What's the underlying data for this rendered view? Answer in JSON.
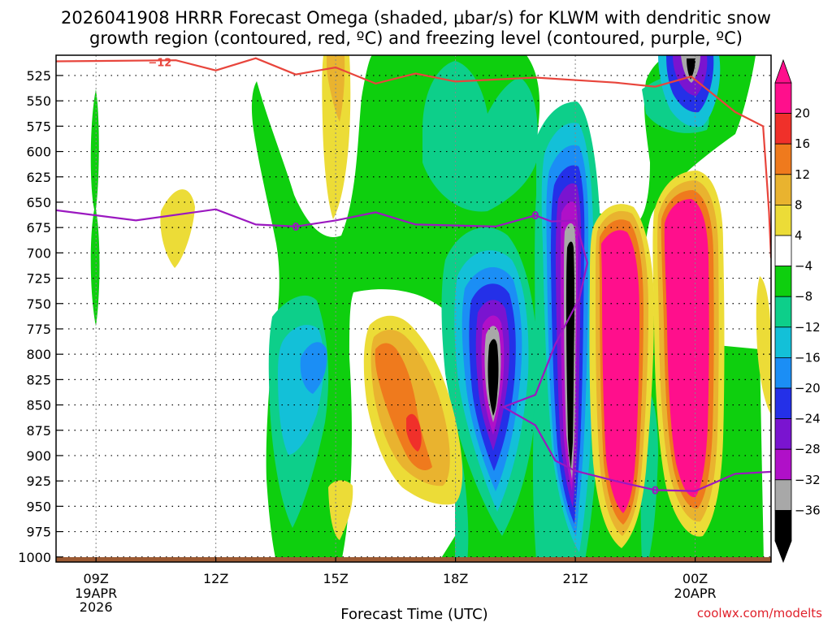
{
  "chart_data": {
    "type": "time-height contour",
    "title_line1": "2026041908 HRRR Forecast Omega (shaded, μbar/s) for KLWM with dendritic snow",
    "title_line2": "growth region (contoured, red, ºC) and freezing level (contoured, purple, ºC)",
    "xlabel": "Forecast Time (UTC)",
    "credit": "coolwx.com/modelts",
    "x_ticks": [
      {
        "hour": 9,
        "label": "09Z",
        "sub": [
          "19APR",
          "2026"
        ]
      },
      {
        "hour": 12,
        "label": "12Z",
        "sub": []
      },
      {
        "hour": 15,
        "label": "15Z",
        "sub": []
      },
      {
        "hour": 18,
        "label": "18Z",
        "sub": []
      },
      {
        "hour": 21,
        "label": "21Z",
        "sub": []
      },
      {
        "hour": 24,
        "label": "00Z",
        "sub": [
          "20APR"
        ]
      }
    ],
    "xlim": [
      8.0,
      25.9
    ],
    "y_ticks": [
      "525",
      "550",
      "575",
      "600",
      "625",
      "650",
      "675",
      "700",
      "725",
      "750",
      "775",
      "800",
      "825",
      "850",
      "875",
      "900",
      "925",
      "950",
      "975",
      "1000"
    ],
    "ylim": [
      505,
      1005
    ],
    "colorbar": {
      "levels": [
        "20",
        "16",
        "12",
        "8",
        "4",
        "−4",
        "−8",
        "−12",
        "−16",
        "−20",
        "−24",
        "−28",
        "−32",
        "−36"
      ],
      "colors": [
        "#ff0f8c",
        "#f0302a",
        "#ef7a1d",
        "#e9b32f",
        "#ecdc37",
        "#ffffff",
        "#0ecf0e",
        "#0dcf8a",
        "#13c0d8",
        "#1b8ef5",
        "#2430e8",
        "#7a14d0",
        "#b010c8",
        "#a8a8a8",
        "#000000"
      ]
    },
    "contours": {
      "dgz_minus12_label": "−12",
      "dgz_minus12_points": [
        [
          8.0,
          511
        ],
        [
          11.0,
          510
        ],
        [
          12.0,
          520
        ],
        [
          13.0,
          508
        ],
        [
          14.0,
          524
        ],
        [
          15.0,
          517
        ],
        [
          16.0,
          533
        ],
        [
          17.0,
          523
        ],
        [
          18.0,
          531
        ],
        [
          20.0,
          527
        ],
        [
          22.0,
          532
        ],
        [
          23.0,
          536
        ],
        [
          23.9,
          526
        ],
        [
          25.0,
          561
        ],
        [
          25.7,
          575
        ],
        [
          25.85,
          660
        ],
        [
          25.9,
          705
        ]
      ],
      "freezing_level_label": "0",
      "freezing_level_points": [
        [
          8.0,
          658
        ],
        [
          10.0,
          668
        ],
        [
          12.0,
          657
        ],
        [
          13.0,
          672
        ],
        [
          14.0,
          674
        ],
        [
          15.0,
          668
        ],
        [
          16.0,
          660
        ],
        [
          17.0,
          672
        ],
        [
          19.0,
          674
        ],
        [
          20.0,
          663
        ],
        [
          20.4,
          669
        ],
        [
          21.0,
          668
        ],
        [
          21.3,
          710
        ],
        [
          21.1,
          745
        ],
        [
          20.5,
          790
        ],
        [
          20.0,
          840
        ],
        [
          19.2,
          852
        ],
        [
          20.0,
          870
        ],
        [
          20.5,
          905
        ],
        [
          21.0,
          915
        ],
        [
          22.0,
          925
        ],
        [
          23.0,
          934
        ],
        [
          24.0,
          935
        ],
        [
          25.0,
          918
        ],
        [
          25.9,
          916
        ]
      ]
    },
    "surface_ground_top_hpa": 1000
  }
}
